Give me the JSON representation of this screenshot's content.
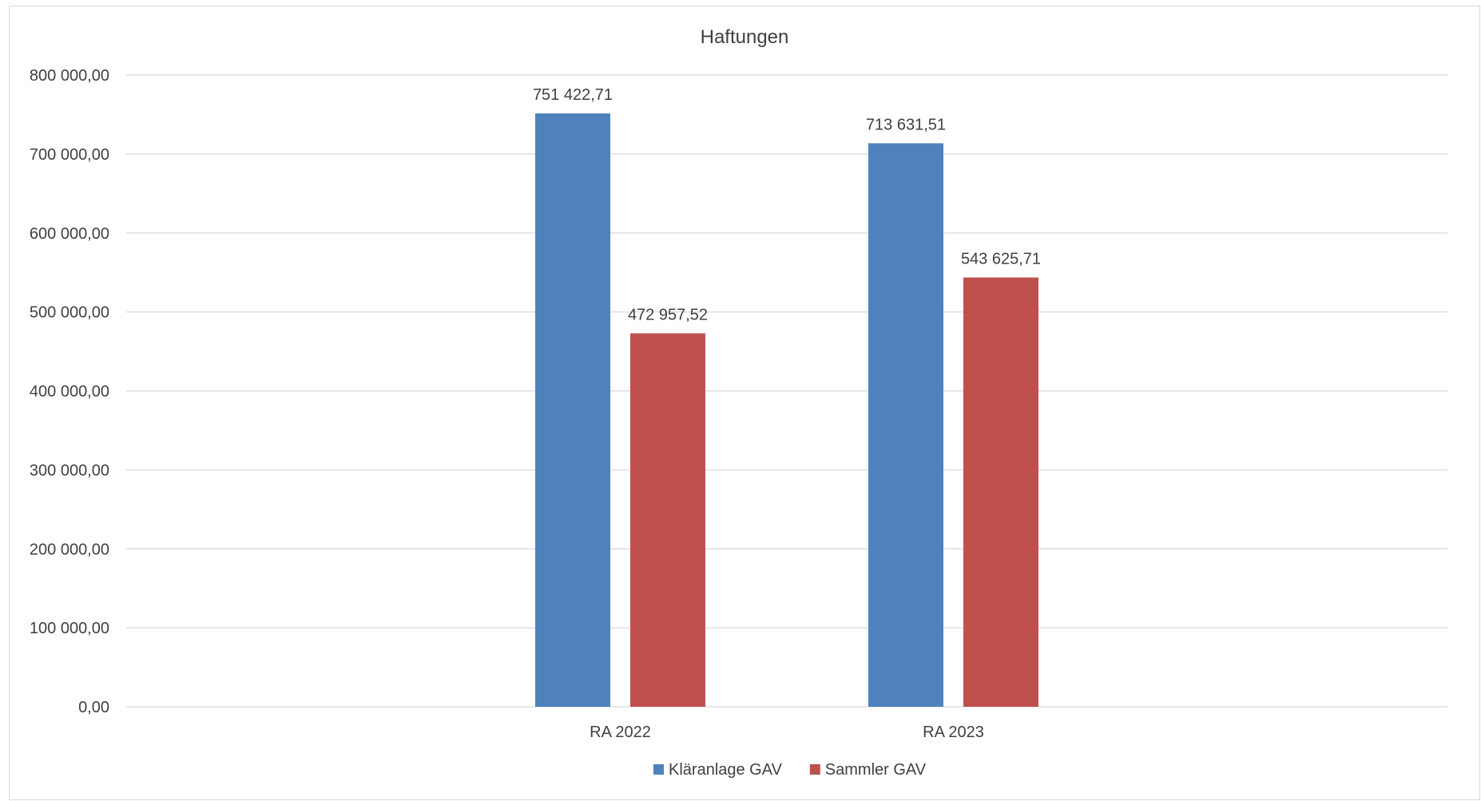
{
  "chart_data": {
    "type": "bar",
    "title": "Haftungen",
    "xlabel": "",
    "ylabel": "",
    "categories": [
      "RA 2022",
      "RA 2023"
    ],
    "series": [
      {
        "name": "Kläranlage GAV",
        "color": "#4F81BD",
        "values": [
          751422.71,
          713631.51
        ],
        "labels": [
          "751 422,71",
          "713 631,51"
        ]
      },
      {
        "name": "Sammler GAV",
        "color": "#C0504D",
        "values": [
          472957.52,
          543625.71
        ],
        "labels": [
          "472 957,52",
          "543 625,71"
        ]
      }
    ],
    "ylim": [
      0,
      800000
    ],
    "yticks": [
      0,
      100000,
      200000,
      300000,
      400000,
      500000,
      600000,
      700000,
      800000
    ],
    "ytick_labels": [
      "0,00",
      "100 000,00",
      "200 000,00",
      "300 000,00",
      "400 000,00",
      "500 000,00",
      "600 000,00",
      "700 000,00",
      "800 000,00"
    ],
    "grid": true,
    "legend": "bottom"
  }
}
